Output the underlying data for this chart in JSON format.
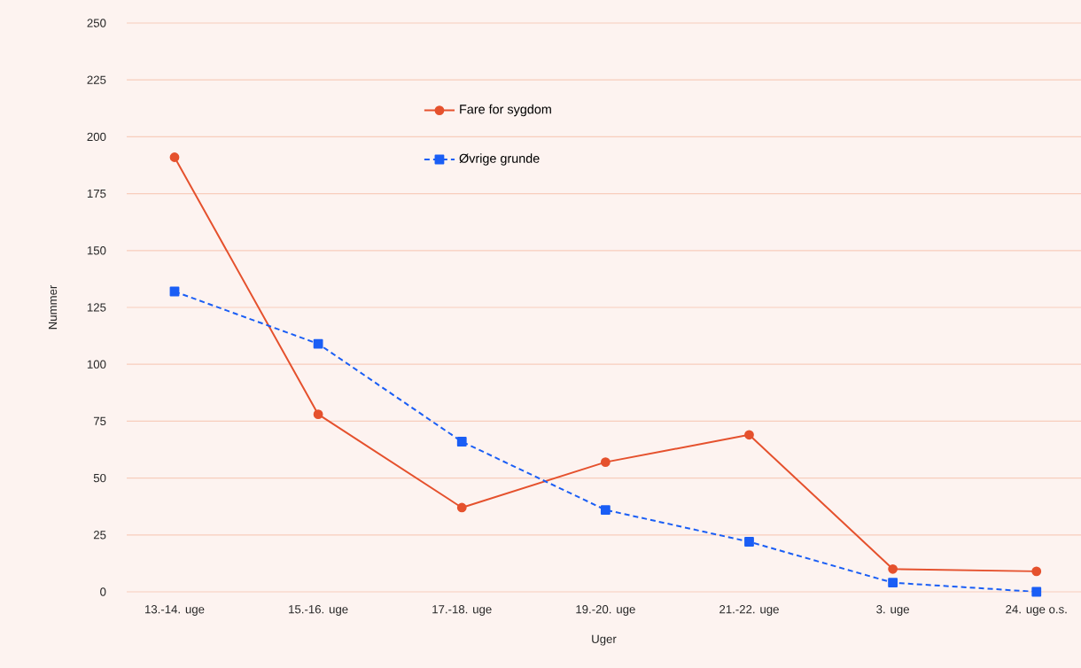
{
  "chart_data": {
    "type": "line",
    "xlabel": "Uger",
    "ylabel": "Nummer",
    "categories": [
      "13.-14. uge",
      "15.-16. uge",
      "17.-18. uge",
      "19.-20. uge",
      "21.-22. uge",
      "3. uge",
      "24. uge o.s."
    ],
    "series": [
      {
        "name": "Fare for sygdom",
        "color": "#e5512d",
        "marker": "circle",
        "line_style": "solid",
        "values": [
          191,
          78,
          37,
          57,
          69,
          10,
          9
        ]
      },
      {
        "name": "Øvrige grunde",
        "color": "#1a5ef5",
        "marker": "square",
        "line_style": "dashed",
        "values": [
          132,
          109,
          66,
          36,
          22,
          4,
          0
        ]
      }
    ],
    "ylim": [
      0,
      250
    ],
    "yticks": [
      0,
      25,
      50,
      75,
      100,
      125,
      150,
      175,
      200,
      225,
      250
    ],
    "grid": "y",
    "legend": "top"
  }
}
